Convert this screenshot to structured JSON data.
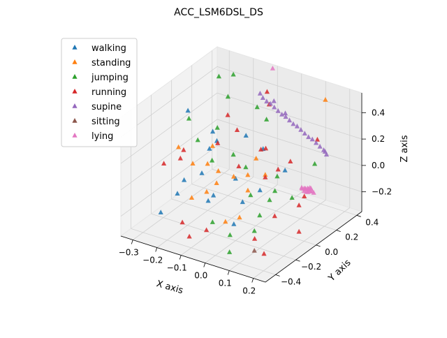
{
  "chart_data": {
    "type": "scatter3d",
    "title": "ACC_LSM6DSL_DS",
    "xlabel": "X axis",
    "ylabel": "Y axis",
    "zlabel": "Z axis",
    "xlim": [
      -0.35,
      0.25
    ],
    "ylim": [
      -0.5,
      0.45
    ],
    "zlim": [
      -0.35,
      0.55
    ],
    "xticks": [
      "−0.3",
      "−0.2",
      "−0.1",
      "0.0",
      "0.1",
      "0.2"
    ],
    "yticks": [
      "−0.4",
      "−0.2",
      "0.0",
      "0.2",
      "0.4"
    ],
    "zticks": [
      "−0.2",
      "0.0",
      "0.2",
      "0.4"
    ],
    "grid": true,
    "legend_position": "upper-left",
    "marker": "triangle",
    "series": [
      {
        "name": "walking",
        "color": "#1f77b4",
        "points": [
          [
            -0.24,
            -0.1,
            0.44
          ],
          [
            -0.26,
            -0.32,
            -0.22
          ],
          [
            -0.25,
            -0.18,
            -0.15
          ],
          [
            -0.18,
            -0.28,
            0.05
          ],
          [
            -0.14,
            -0.2,
            0.08
          ],
          [
            -0.1,
            -0.22,
            0.3
          ],
          [
            -0.05,
            -0.3,
            0.02
          ],
          [
            0.0,
            -0.2,
            0.12
          ],
          [
            0.05,
            -0.25,
            0.0
          ],
          [
            0.08,
            -0.15,
            0.05
          ],
          [
            -0.02,
            -0.05,
            0.35
          ],
          [
            0.03,
            0.0,
            0.25
          ],
          [
            0.1,
            0.05,
            0.1
          ],
          [
            -0.2,
            0.05,
            0.22
          ],
          [
            -0.08,
            -0.28,
            -0.05
          ],
          [
            0.06,
            -0.36,
            -0.1
          ],
          [
            -0.12,
            -0.1,
            0.28
          ]
        ]
      },
      {
        "name": "standing",
        "color": "#ff7f0e",
        "points": [
          [
            -0.3,
            -0.05,
            0.1
          ],
          [
            -0.22,
            -0.1,
            0.05
          ],
          [
            -0.15,
            -0.12,
            0.1
          ],
          [
            -0.1,
            -0.15,
            0.0
          ],
          [
            -0.05,
            -0.1,
            0.05
          ],
          [
            0.0,
            -0.08,
            0.08
          ],
          [
            -0.12,
            -0.2,
            -0.05
          ],
          [
            -0.08,
            -0.18,
            0.12
          ],
          [
            0.12,
            0.4,
            0.45
          ],
          [
            0.0,
            -0.3,
            -0.15
          ],
          [
            0.05,
            -0.28,
            -0.1
          ],
          [
            -0.18,
            0.0,
            0.15
          ],
          [
            -0.02,
            0.05,
            0.12
          ],
          [
            0.06,
            -0.05,
            0.1
          ],
          [
            -0.14,
            -0.3,
            -0.05
          ],
          [
            0.03,
            -0.15,
            0.02
          ]
        ]
      },
      {
        "name": "jumping",
        "color": "#2ca02c",
        "points": [
          [
            -0.32,
            0.1,
            0.22
          ],
          [
            -0.28,
            0.3,
            0.45
          ],
          [
            -0.22,
            0.3,
            0.5
          ],
          [
            -0.2,
            0.2,
            0.4
          ],
          [
            -0.22,
            -0.05,
            0.2
          ],
          [
            -0.16,
            0.0,
            0.3
          ],
          [
            -0.14,
            -0.1,
            0.12
          ],
          [
            -0.06,
            -0.08,
            0.2
          ],
          [
            0.0,
            -0.1,
            0.15
          ],
          [
            0.08,
            0.02,
            0.06
          ],
          [
            0.1,
            -0.05,
            0.0
          ],
          [
            0.1,
            -0.2,
            -0.1
          ],
          [
            0.16,
            0.2,
            0.1
          ],
          [
            0.04,
            -0.35,
            -0.2
          ],
          [
            0.08,
            -0.45,
            -0.25
          ],
          [
            0.12,
            -0.3,
            -0.15
          ],
          [
            0.02,
            -0.1,
            -0.05
          ],
          [
            0.15,
            0.0,
            -0.05
          ],
          [
            -0.04,
            0.2,
            0.32
          ],
          [
            -0.1,
            0.25,
            0.35
          ],
          [
            0.12,
            -0.15,
            0.0
          ],
          [
            -0.02,
            -0.38,
            -0.12
          ]
        ]
      },
      {
        "name": "running",
        "color": "#d62728",
        "points": [
          [
            -0.34,
            -0.1,
            -0.02
          ],
          [
            -0.3,
            0.0,
            0.05
          ],
          [
            -0.25,
            -0.15,
            0.1
          ],
          [
            -0.2,
            -0.25,
            -0.3
          ],
          [
            -0.15,
            -0.3,
            -0.35
          ],
          [
            -0.1,
            -0.25,
            -0.3
          ],
          [
            -0.18,
            0.15,
            0.3
          ],
          [
            -0.12,
            0.1,
            0.25
          ],
          [
            -0.05,
            -0.05,
            0.1
          ],
          [
            0.0,
            0.05,
            0.2
          ],
          [
            0.05,
            0.1,
            0.05
          ],
          [
            0.08,
            0.15,
            0.1
          ],
          [
            0.12,
            -0.1,
            -0.15
          ],
          [
            0.18,
            0.05,
            -0.05
          ],
          [
            0.2,
            -0.05,
            -0.05
          ],
          [
            0.15,
            0.25,
            0.25
          ],
          [
            0.2,
            -0.05,
            -0.25
          ],
          [
            -0.05,
            0.25,
            0.4
          ],
          [
            -0.08,
            0.3,
            0.45
          ],
          [
            0.02,
            0.05,
            0.22
          ],
          [
            0.06,
            -0.05,
            0.08
          ],
          [
            -0.15,
            -0.02,
            0.2
          ],
          [
            0.1,
            -0.25,
            -0.25
          ],
          [
            0.16,
            -0.3,
            -0.3
          ]
        ]
      },
      {
        "name": "supine",
        "color": "#9467bd",
        "points": [
          [
            -0.13,
            0.35,
            0.38
          ],
          [
            -0.11,
            0.33,
            0.37
          ],
          [
            -0.09,
            0.32,
            0.36
          ],
          [
            -0.07,
            0.31,
            0.36
          ],
          [
            -0.05,
            0.3,
            0.35
          ],
          [
            -0.03,
            0.29,
            0.34
          ],
          [
            -0.01,
            0.28,
            0.33
          ],
          [
            0.01,
            0.27,
            0.33
          ],
          [
            0.03,
            0.26,
            0.32
          ],
          [
            0.05,
            0.25,
            0.31
          ],
          [
            0.07,
            0.24,
            0.31
          ],
          [
            0.09,
            0.23,
            0.3
          ],
          [
            0.11,
            0.22,
            0.29
          ],
          [
            0.13,
            0.21,
            0.28
          ],
          [
            0.15,
            0.2,
            0.28
          ],
          [
            0.17,
            0.19,
            0.27
          ],
          [
            0.19,
            0.18,
            0.26
          ],
          [
            0.21,
            0.17,
            0.25
          ],
          [
            0.22,
            0.16,
            0.25
          ],
          [
            0.23,
            0.15,
            0.24
          ],
          [
            -0.06,
            0.32,
            0.38
          ],
          [
            0.0,
            0.29,
            0.34
          ]
        ]
      },
      {
        "name": "sitting",
        "color": "#8c564b",
        "points": [
          [
            0.12,
            -0.3,
            -0.3
          ]
        ]
      },
      {
        "name": "lying",
        "color": "#e377c2",
        "points": [
          [
            -0.12,
            0.45,
            0.52
          ],
          [
            0.2,
            0.0,
            0.05
          ],
          [
            0.21,
            0.01,
            0.05
          ],
          [
            0.22,
            -0.01,
            0.04
          ],
          [
            0.2,
            -0.02,
            0.06
          ],
          [
            0.21,
            0.02,
            0.04
          ],
          [
            0.22,
            0.0,
            0.05
          ],
          [
            0.23,
            0.01,
            0.04
          ],
          [
            0.21,
            -0.01,
            0.06
          ],
          [
            0.2,
            0.01,
            0.04
          ],
          [
            0.22,
            0.02,
            0.05
          ],
          [
            0.23,
            -0.01,
            0.05
          ],
          [
            0.21,
            0.0,
            0.03
          ],
          [
            0.24,
            0.0,
            0.04
          ],
          [
            0.19,
            0.0,
            0.05
          ],
          [
            0.22,
            0.01,
            0.06
          ],
          [
            0.2,
            0.0,
            0.03
          ]
        ]
      }
    ]
  }
}
